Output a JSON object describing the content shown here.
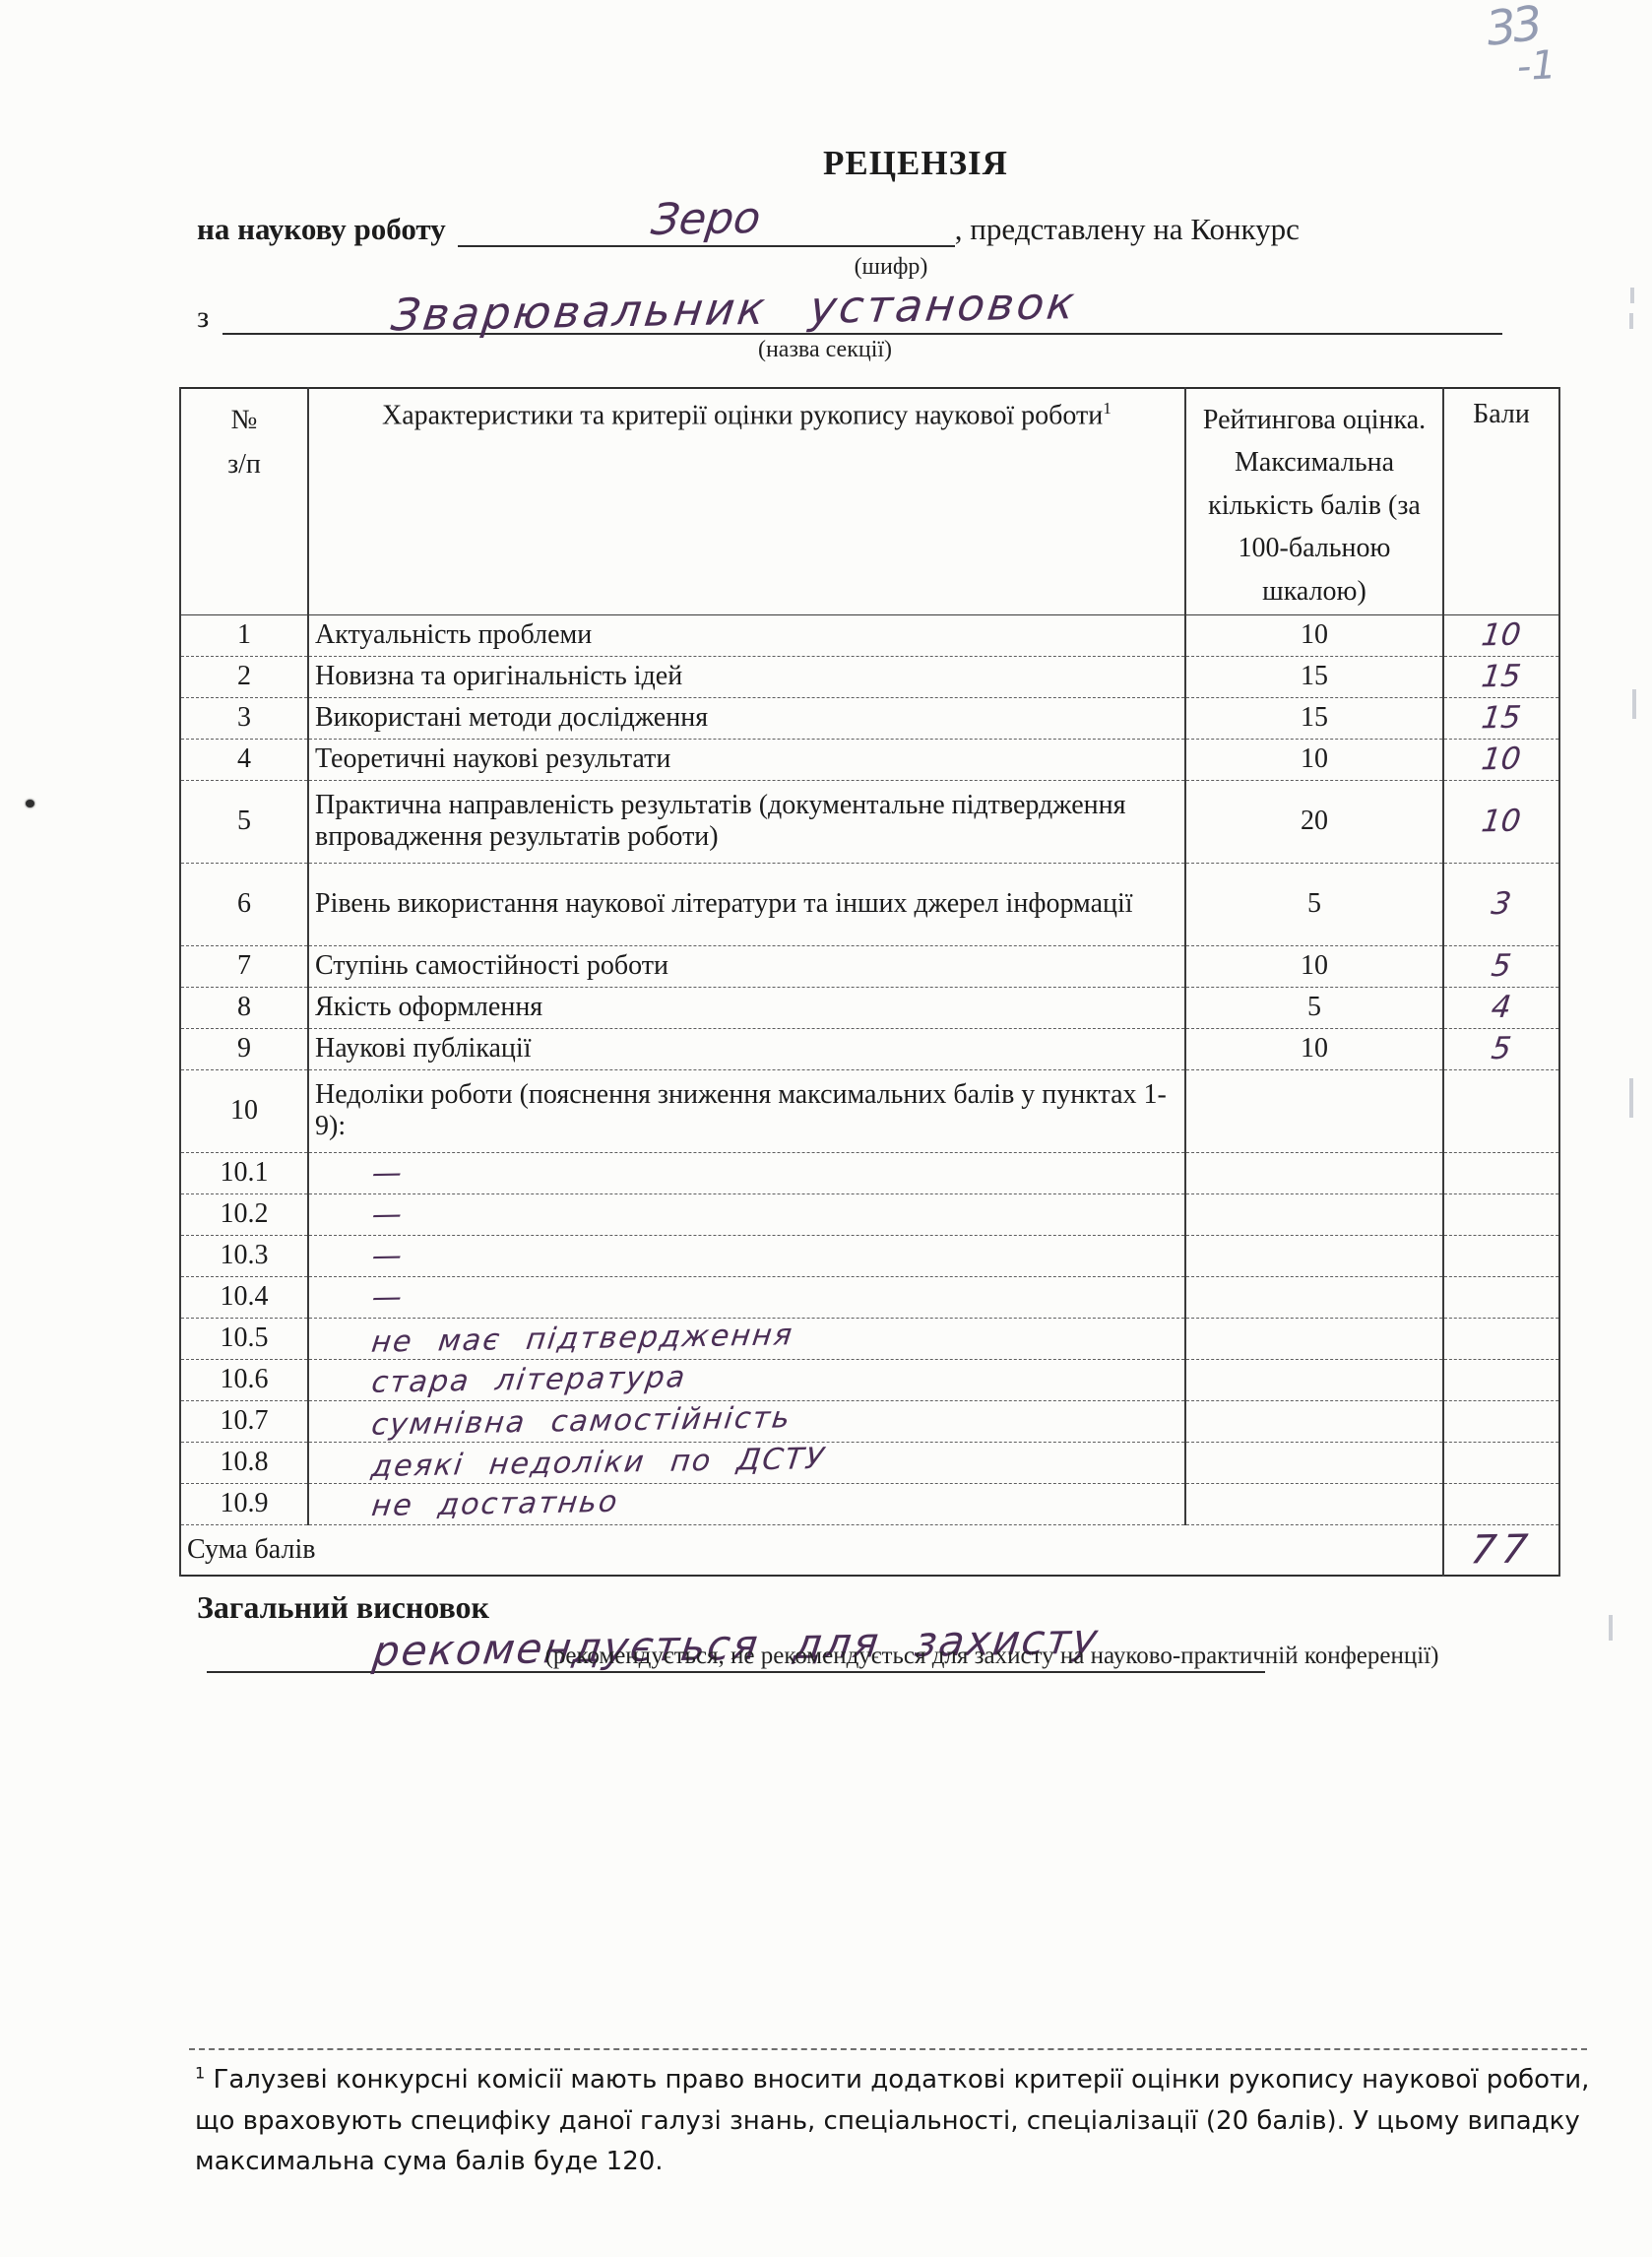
{
  "corner_note": {
    "line1": "33",
    "line2": "-1"
  },
  "header": {
    "title": "РЕЦЕНЗІЯ",
    "line1_label": "на наукову роботу",
    "line1_value": "Зеро",
    "line1_suffix": ", представлену на Конкурс",
    "line1_caption": "(шифр)",
    "line2_label": "з",
    "line2_value": "Зварювальник установок",
    "line2_caption": "(назва секції)"
  },
  "table": {
    "headers": {
      "num_line1": "№",
      "num_line2": "з/п",
      "criteria": "Характеристики та критерії оцінки рукопису наукової роботи",
      "criteria_sup": "1",
      "rating": "Рейтингова оцінка. Максимальна кількість балів (за 100-бальною шкалою)",
      "score": "Бали"
    },
    "rows": [
      {
        "num": "1",
        "criteria": "Актуальність проблеми",
        "rating": "10",
        "score": "10"
      },
      {
        "num": "2",
        "criteria": "Новизна та оригінальність ідей",
        "rating": "15",
        "score": "15"
      },
      {
        "num": "3",
        "criteria": "Використані методи дослідження",
        "rating": "15",
        "score": "15"
      },
      {
        "num": "4",
        "criteria": "Теоретичні наукові результати",
        "rating": "10",
        "score": "10"
      },
      {
        "num": "5",
        "criteria": "Практична направленість результатів (документальне підтвердження впровадження результатів роботи)",
        "rating": "20",
        "score": "10",
        "tall": true
      },
      {
        "num": "6",
        "criteria": "Рівень використання наукової літератури та інших джерел інформації",
        "rating": "5",
        "score": "3",
        "tall": true
      },
      {
        "num": "7",
        "criteria": "Ступінь самостійності роботи",
        "rating": "10",
        "score": "5"
      },
      {
        "num": "8",
        "criteria": "Якість оформлення",
        "rating": "5",
        "score": "4"
      },
      {
        "num": "9",
        "criteria": "Наукові публікації",
        "rating": "10",
        "score": "5"
      },
      {
        "num": "10",
        "criteria": "Недоліки роботи (пояснення зниження максимальних балів у пунктах 1-9):",
        "rating": "",
        "score": "",
        "tall": true
      },
      {
        "num": "10.1",
        "criteria": "—",
        "rating": "",
        "score": "",
        "hand": true
      },
      {
        "num": "10.2",
        "criteria": "—",
        "rating": "",
        "score": "",
        "hand": true
      },
      {
        "num": "10.3",
        "criteria": "—",
        "rating": "",
        "score": "",
        "hand": true
      },
      {
        "num": "10.4",
        "criteria": "—",
        "rating": "",
        "score": "",
        "hand": true
      },
      {
        "num": "10.5",
        "criteria": "не має підтвердження",
        "rating": "",
        "score": "",
        "hand": true
      },
      {
        "num": "10.6",
        "criteria": "стара література",
        "rating": "",
        "score": "",
        "hand": true
      },
      {
        "num": "10.7",
        "criteria": "сумнівна самостійність",
        "rating": "",
        "score": "",
        "hand": true
      },
      {
        "num": "10.8",
        "criteria": "деякі недоліки по ДСТУ",
        "rating": "",
        "score": "",
        "hand": true
      },
      {
        "num": "10.9",
        "criteria": "не достатньо",
        "rating": "",
        "score": "",
        "hand": true
      }
    ],
    "sum_label": "Сума балів",
    "sum_score": "77"
  },
  "conclusion": {
    "label": "Загальний висновок",
    "value": "рекомендується для захисту",
    "caption": "(рекомендується, не рекомендується для захисту на науково-практичній конференції)"
  },
  "footnote": {
    "marker": "1",
    "text": " Галузеві конкурсні комісії мають право вносити додаткові критерії оцінки рукопису наукової роботи, що враховують специфіку даної галузі знань, спеціальності, спеціалізації (20 балів). У цьому випадку максимальна сума балів буде 120."
  }
}
